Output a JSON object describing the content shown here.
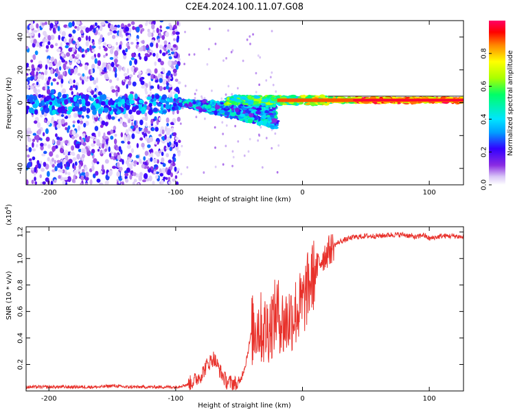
{
  "page": {
    "title": "C2E4.2024.100.11.07.G08"
  },
  "chart_data": [
    {
      "type": "heatmap",
      "xlabel": "Height of straight line (km)",
      "ylabel": "Frequency (Hz)",
      "xlim": [
        -218,
        127
      ],
      "ylim": [
        -50,
        50
      ],
      "x_ticks": [
        -200,
        -100,
        0,
        100
      ],
      "y_ticks": [
        -40,
        -20,
        0,
        20,
        40
      ],
      "colorbar": {
        "label": "Normalized spectral amplitude",
        "range": [
          0.0,
          1.0
        ],
        "ticks": [
          0.0,
          0.2,
          0.4,
          0.6,
          0.8
        ],
        "colormap": [
          "#ffffff",
          "#d9c6f7",
          "#8a2be2",
          "#3300ff",
          "#00e5ff",
          "#00ff66",
          "#aaff00",
          "#ffff00",
          "#ff8800",
          "#ff0000",
          "#ff0066"
        ]
      },
      "regions": [
        {
          "x_range": [
            -218,
            -97
          ],
          "freq_range": [
            -50,
            50
          ],
          "amplitude": "scattered 0.05-0.3"
        },
        {
          "x_range": [
            -97,
            -20
          ],
          "freq_center": [
            0,
            -10
          ],
          "amplitude": "0.2-0.5"
        },
        {
          "x_range": [
            -20,
            80
          ],
          "freq_center": [
            2,
            2
          ],
          "amplitude": "0.4-1.0"
        },
        {
          "x_range": [
            80,
            127
          ],
          "freq_center": [
            2,
            2
          ],
          "amplitude": "0.6-1.0"
        }
      ],
      "grid": false
    },
    {
      "type": "line",
      "xlabel": "Height of straight line (km)",
      "ylabel": "SNR (10 * v/v)",
      "y_multiplier": "(x10",
      "y_multiplier_exp": "4",
      "y_multiplier_close": ")",
      "xlim": [
        -218,
        127
      ],
      "ylim": [
        0.0,
        1.24
      ],
      "x_ticks": [
        -200,
        -100,
        0,
        100
      ],
      "y_ticks": [
        0.2,
        0.4,
        0.6,
        0.8,
        1.0,
        1.2
      ],
      "series": [
        {
          "color": "#e8312b",
          "x": [
            -218,
            -200,
            -180,
            -160,
            -150,
            -140,
            -120,
            -100,
            -90,
            -85,
            -80,
            -75,
            -70,
            -65,
            -60,
            -55,
            -50,
            -45,
            -40,
            -35,
            -30,
            -25,
            -20,
            -15,
            -10,
            -5,
            0,
            5,
            10,
            15,
            20,
            25,
            30,
            40,
            50,
            60,
            70,
            80,
            90,
            95,
            100,
            110,
            120,
            127
          ],
          "values": [
            0.03,
            0.03,
            0.03,
            0.03,
            0.04,
            0.03,
            0.03,
            0.03,
            0.05,
            0.08,
            0.12,
            0.2,
            0.25,
            0.15,
            0.07,
            0.06,
            0.05,
            0.2,
            0.45,
            0.5,
            0.45,
            0.5,
            0.6,
            0.5,
            0.55,
            0.6,
            0.65,
            0.8,
            0.9,
            1.0,
            1.05,
            1.1,
            1.13,
            1.16,
            1.17,
            1.17,
            1.18,
            1.18,
            1.16,
            1.18,
            1.15,
            1.17,
            1.17,
            1.16
          ]
        }
      ],
      "grid": false
    }
  ]
}
